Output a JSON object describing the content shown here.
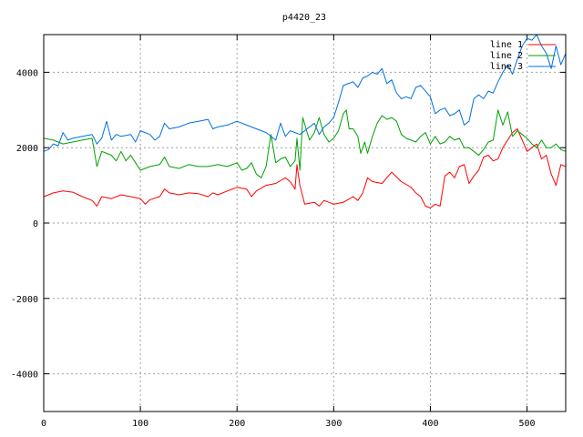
{
  "chart_data": {
    "type": "line",
    "title": "p4420_23",
    "xlabel": "",
    "ylabel": "",
    "xlim": [
      0,
      540
    ],
    "ylim": [
      -5000,
      5000
    ],
    "xticks": [
      0,
      100,
      200,
      300,
      400,
      500
    ],
    "yticks": [
      -4000,
      -2000,
      0,
      2000,
      4000
    ],
    "grid": true,
    "legend_position": "top-right",
    "series": [
      {
        "name": "line 1",
        "color": "#ff0000",
        "points": [
          [
            0,
            700
          ],
          [
            10,
            800
          ],
          [
            20,
            850
          ],
          [
            30,
            820
          ],
          [
            40,
            700
          ],
          [
            50,
            600
          ],
          [
            55,
            450
          ],
          [
            60,
            700
          ],
          [
            70,
            650
          ],
          [
            80,
            750
          ],
          [
            90,
            700
          ],
          [
            100,
            650
          ],
          [
            105,
            500
          ],
          [
            110,
            620
          ],
          [
            120,
            700
          ],
          [
            125,
            900
          ],
          [
            130,
            800
          ],
          [
            140,
            750
          ],
          [
            150,
            800
          ],
          [
            160,
            780
          ],
          [
            170,
            700
          ],
          [
            175,
            800
          ],
          [
            180,
            750
          ],
          [
            190,
            850
          ],
          [
            200,
            950
          ],
          [
            210,
            900
          ],
          [
            215,
            700
          ],
          [
            220,
            850
          ],
          [
            230,
            1000
          ],
          [
            240,
            1050
          ],
          [
            250,
            1200
          ],
          [
            255,
            1100
          ],
          [
            260,
            900
          ],
          [
            262,
            1550
          ],
          [
            265,
            1000
          ],
          [
            270,
            500
          ],
          [
            280,
            550
          ],
          [
            285,
            450
          ],
          [
            290,
            600
          ],
          [
            300,
            500
          ],
          [
            310,
            550
          ],
          [
            320,
            700
          ],
          [
            325,
            600
          ],
          [
            330,
            800
          ],
          [
            335,
            1200
          ],
          [
            340,
            1100
          ],
          [
            350,
            1050
          ],
          [
            360,
            1350
          ],
          [
            370,
            1100
          ],
          [
            380,
            950
          ],
          [
            385,
            800
          ],
          [
            390,
            700
          ],
          [
            395,
            450
          ],
          [
            400,
            400
          ],
          [
            405,
            500
          ],
          [
            410,
            450
          ],
          [
            415,
            1250
          ],
          [
            420,
            1350
          ],
          [
            425,
            1200
          ],
          [
            430,
            1500
          ],
          [
            435,
            1550
          ],
          [
            440,
            1050
          ],
          [
            445,
            1250
          ],
          [
            450,
            1400
          ],
          [
            455,
            1750
          ],
          [
            460,
            1800
          ],
          [
            465,
            1650
          ],
          [
            470,
            1700
          ],
          [
            475,
            2000
          ],
          [
            480,
            2200
          ],
          [
            485,
            2400
          ],
          [
            490,
            2500
          ],
          [
            495,
            2200
          ],
          [
            500,
            1900
          ],
          [
            505,
            2000
          ],
          [
            510,
            2100
          ],
          [
            515,
            1700
          ],
          [
            520,
            1800
          ],
          [
            525,
            1300
          ],
          [
            530,
            1000
          ],
          [
            535,
            1550
          ],
          [
            540,
            1500
          ]
        ]
      },
      {
        "name": "line 2",
        "color": "#00a000",
        "points": [
          [
            0,
            2250
          ],
          [
            10,
            2200
          ],
          [
            20,
            2100
          ],
          [
            30,
            2150
          ],
          [
            40,
            2200
          ],
          [
            50,
            2250
          ],
          [
            55,
            1500
          ],
          [
            60,
            1900
          ],
          [
            65,
            1850
          ],
          [
            70,
            1800
          ],
          [
            75,
            1650
          ],
          [
            80,
            1900
          ],
          [
            85,
            1650
          ],
          [
            90,
            1800
          ],
          [
            95,
            1600
          ],
          [
            100,
            1400
          ],
          [
            110,
            1500
          ],
          [
            120,
            1550
          ],
          [
            125,
            1750
          ],
          [
            130,
            1500
          ],
          [
            140,
            1450
          ],
          [
            150,
            1550
          ],
          [
            160,
            1500
          ],
          [
            170,
            1500
          ],
          [
            180,
            1550
          ],
          [
            190,
            1500
          ],
          [
            200,
            1600
          ],
          [
            205,
            1400
          ],
          [
            210,
            1450
          ],
          [
            215,
            1600
          ],
          [
            220,
            1300
          ],
          [
            225,
            1200
          ],
          [
            230,
            1500
          ],
          [
            235,
            2350
          ],
          [
            240,
            1600
          ],
          [
            245,
            1700
          ],
          [
            250,
            1750
          ],
          [
            255,
            1500
          ],
          [
            260,
            1650
          ],
          [
            262,
            2250
          ],
          [
            265,
            1400
          ],
          [
            268,
            2800
          ],
          [
            272,
            2450
          ],
          [
            275,
            2200
          ],
          [
            280,
            2400
          ],
          [
            285,
            2800
          ],
          [
            290,
            2350
          ],
          [
            295,
            2150
          ],
          [
            300,
            2250
          ],
          [
            305,
            2450
          ],
          [
            310,
            2900
          ],
          [
            313,
            3000
          ],
          [
            316,
            2500
          ],
          [
            320,
            2500
          ],
          [
            325,
            2300
          ],
          [
            328,
            1850
          ],
          [
            332,
            2150
          ],
          [
            335,
            1850
          ],
          [
            340,
            2300
          ],
          [
            345,
            2650
          ],
          [
            350,
            2850
          ],
          [
            355,
            2750
          ],
          [
            360,
            2800
          ],
          [
            365,
            2700
          ],
          [
            370,
            2350
          ],
          [
            375,
            2250
          ],
          [
            380,
            2200
          ],
          [
            385,
            2150
          ],
          [
            390,
            2300
          ],
          [
            395,
            2400
          ],
          [
            400,
            2100
          ],
          [
            405,
            2300
          ],
          [
            410,
            2100
          ],
          [
            415,
            2150
          ],
          [
            420,
            2300
          ],
          [
            425,
            2200
          ],
          [
            430,
            2250
          ],
          [
            435,
            2000
          ],
          [
            440,
            2000
          ],
          [
            445,
            1900
          ],
          [
            450,
            1800
          ],
          [
            455,
            1950
          ],
          [
            460,
            2150
          ],
          [
            465,
            2200
          ],
          [
            470,
            3000
          ],
          [
            475,
            2600
          ],
          [
            480,
            2950
          ],
          [
            485,
            2300
          ],
          [
            490,
            2450
          ],
          [
            495,
            2350
          ],
          [
            500,
            2250
          ],
          [
            505,
            2100
          ],
          [
            510,
            2000
          ],
          [
            515,
            2200
          ],
          [
            520,
            2000
          ],
          [
            525,
            2000
          ],
          [
            530,
            2100
          ],
          [
            535,
            1950
          ],
          [
            540,
            1900
          ]
        ]
      },
      {
        "name": "line 3",
        "color": "#0070e0",
        "points": [
          [
            0,
            1900
          ],
          [
            5,
            1950
          ],
          [
            10,
            2100
          ],
          [
            15,
            2050
          ],
          [
            20,
            2400
          ],
          [
            25,
            2200
          ],
          [
            30,
            2250
          ],
          [
            40,
            2300
          ],
          [
            50,
            2350
          ],
          [
            55,
            2100
          ],
          [
            60,
            2250
          ],
          [
            65,
            2700
          ],
          [
            70,
            2200
          ],
          [
            75,
            2350
          ],
          [
            80,
            2300
          ],
          [
            90,
            2350
          ],
          [
            95,
            2150
          ],
          [
            100,
            2450
          ],
          [
            110,
            2350
          ],
          [
            115,
            2200
          ],
          [
            120,
            2300
          ],
          [
            125,
            2650
          ],
          [
            130,
            2500
          ],
          [
            140,
            2550
          ],
          [
            150,
            2650
          ],
          [
            160,
            2700
          ],
          [
            170,
            2750
          ],
          [
            175,
            2500
          ],
          [
            180,
            2550
          ],
          [
            190,
            2600
          ],
          [
            200,
            2700
          ],
          [
            210,
            2600
          ],
          [
            220,
            2500
          ],
          [
            230,
            2400
          ],
          [
            240,
            2200
          ],
          [
            245,
            2650
          ],
          [
            250,
            2300
          ],
          [
            255,
            2450
          ],
          [
            260,
            2400
          ],
          [
            265,
            2350
          ],
          [
            270,
            2450
          ],
          [
            280,
            2650
          ],
          [
            285,
            2350
          ],
          [
            290,
            2550
          ],
          [
            295,
            2650
          ],
          [
            300,
            2800
          ],
          [
            305,
            3200
          ],
          [
            310,
            3650
          ],
          [
            320,
            3750
          ],
          [
            325,
            3600
          ],
          [
            330,
            3850
          ],
          [
            335,
            3900
          ],
          [
            340,
            4000
          ],
          [
            345,
            3950
          ],
          [
            350,
            4100
          ],
          [
            355,
            3700
          ],
          [
            360,
            3800
          ],
          [
            365,
            3450
          ],
          [
            370,
            3300
          ],
          [
            375,
            3350
          ],
          [
            380,
            3300
          ],
          [
            385,
            3600
          ],
          [
            390,
            3650
          ],
          [
            395,
            3500
          ],
          [
            400,
            3350
          ],
          [
            405,
            2900
          ],
          [
            410,
            3000
          ],
          [
            415,
            3050
          ],
          [
            420,
            2850
          ],
          [
            425,
            2900
          ],
          [
            430,
            3000
          ],
          [
            435,
            2600
          ],
          [
            440,
            2700
          ],
          [
            445,
            3300
          ],
          [
            450,
            3400
          ],
          [
            455,
            3300
          ],
          [
            460,
            3500
          ],
          [
            465,
            3450
          ],
          [
            470,
            3750
          ],
          [
            475,
            4000
          ],
          [
            480,
            4200
          ],
          [
            485,
            3950
          ],
          [
            490,
            4350
          ],
          [
            495,
            4700
          ],
          [
            500,
            4900
          ],
          [
            505,
            4850
          ],
          [
            510,
            5000
          ],
          [
            515,
            4700
          ],
          [
            520,
            4500
          ],
          [
            525,
            4100
          ],
          [
            530,
            4700
          ],
          [
            535,
            4200
          ],
          [
            540,
            4500
          ]
        ]
      }
    ]
  }
}
